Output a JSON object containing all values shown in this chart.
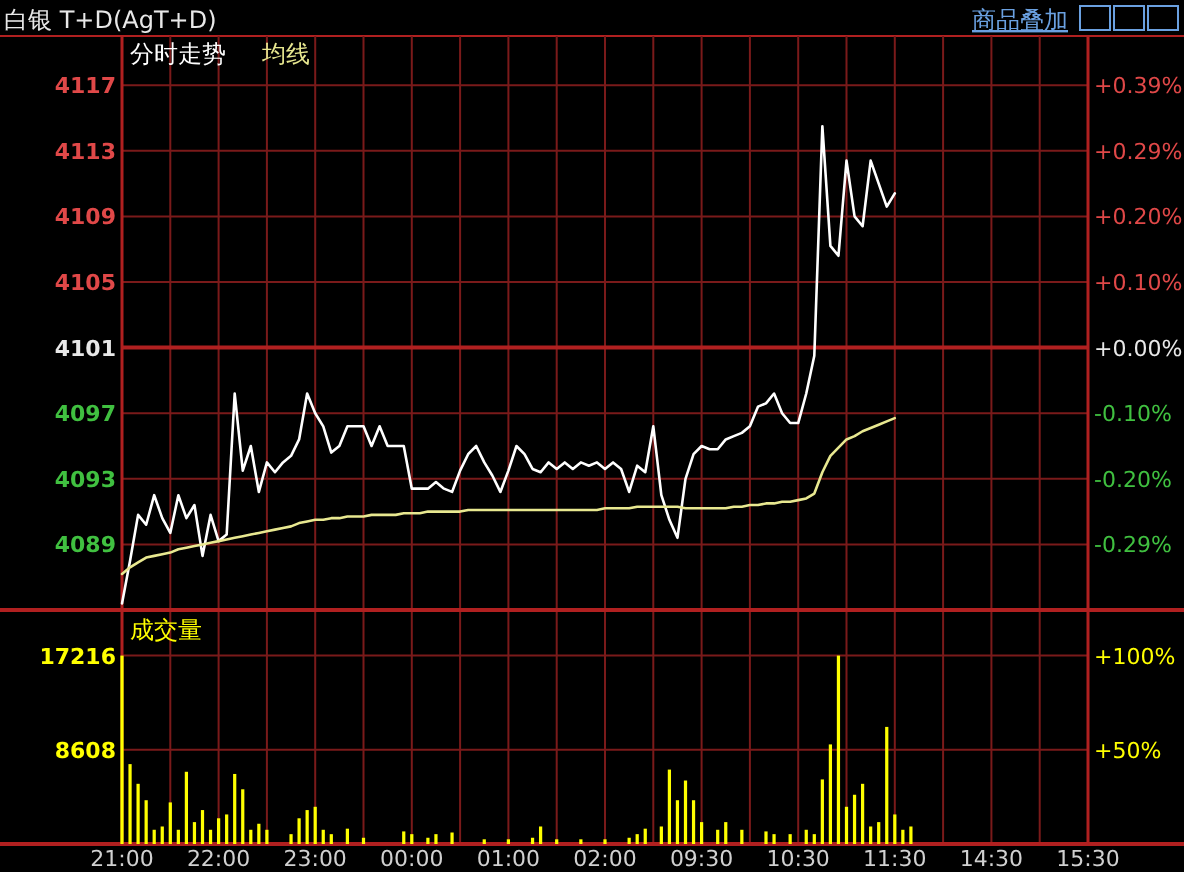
{
  "chart_data": [
    {
      "type": "line",
      "title": "白银 T+D(AgT+D)",
      "annotations": [
        "商品叠加"
      ],
      "legend": "top left",
      "grid": true,
      "tick_labels": "y",
      "categories": [
        null,
        null,
        null,
        null,
        null,
        null,
        null,
        null,
        null,
        null,
        null,
        null,
        null,
        null,
        null,
        null,
        null,
        null,
        null,
        null,
        null,
        null,
        null,
        null,
        null,
        null,
        null,
        null,
        null,
        null,
        null,
        null,
        null,
        null,
        null,
        null,
        null,
        null,
        null,
        null,
        null,
        null,
        null,
        null,
        null,
        null,
        null,
        null,
        null,
        null,
        null,
        null,
        null,
        null,
        null,
        null,
        null,
        null,
        null,
        null,
        null,
        null,
        null,
        null,
        null,
        null,
        null,
        null,
        null,
        null,
        null,
        null,
        null,
        null,
        null,
        null,
        null,
        null,
        null,
        null,
        null,
        null,
        null,
        null,
        null,
        null,
        null,
        null,
        null,
        null,
        null,
        null,
        null,
        null,
        null,
        null,
        null,
        null,
        null,
        null,
        null,
        null,
        null,
        null,
        null,
        null,
        null,
        null,
        null,
        null,
        null,
        null,
        null,
        null,
        null,
        null,
        null,
        null,
        null,
        null,
        null
      ],
      "ylim": [
        4085,
        4120
      ],
      "yticks": [
        4089,
        4093,
        4097,
        4101,
        4105,
        4109,
        4113,
        4117
      ],
      "y2lim": [
        -0.3902,
        0.4633
      ],
      "y2ticks": [
        {
          "value": -0.2926,
          "label": "-0.29%"
        },
        {
          "value": -0.1951,
          "label": "-0.20%"
        },
        {
          "value": -0.0975,
          "label": "-0.10%"
        },
        {
          "value": 0,
          "label": "+0.00%"
        },
        {
          "value": 0.0975,
          "label": "+0.10%"
        },
        {
          "value": 0.1951,
          "label": "+0.20%"
        },
        {
          "value": 0.2926,
          "label": "+0.29%"
        },
        {
          "value": 0.3902,
          "label": "+0.39%"
        }
      ],
      "ref_lines": [
        {
          "axis": "y",
          "value": 4101,
          "color": "#b02020"
        }
      ],
      "series": [
        {
          "name": "分时走势",
          "color": "#ffffff",
          "values": [
            4085.4,
            4088,
            4090.8,
            4090.2,
            4092,
            4090.6,
            4089.7,
            4092,
            4090.6,
            4091.4,
            4088.3,
            4090.8,
            4089.2,
            4089.6,
            4098.2,
            4093.5,
            4095,
            4092.2,
            4094,
            4093.4,
            4094,
            4094.4,
            4095.4,
            4098.2,
            4097,
            4096.2,
            4094.6,
            4095,
            4096.2,
            4096.2,
            4096.2,
            4095,
            4096.2,
            4095,
            4095,
            4095,
            4092.4,
            4092.4,
            4092.4,
            4092.8,
            4092.4,
            4092.2,
            4093.5,
            4094.5,
            4095,
            4094,
            4093.2,
            4092.2,
            4093.5,
            4095,
            4094.5,
            4093.6,
            4093.4,
            4094,
            4093.6,
            4094,
            4093.6,
            4094,
            4093.8,
            4094,
            4093.6,
            4094,
            4093.6,
            4092.2,
            4093.8,
            4093.4,
            4096.2,
            4092,
            4090.5,
            4089.4,
            4093,
            4094.5,
            4095,
            4094.8,
            4094.8,
            4095.4,
            4095.6,
            4095.8,
            4096.2,
            4097.4,
            4097.6,
            4098.2,
            4097,
            4096.4,
            4096.4,
            4098.2,
            4100.5,
            4114.5,
            4107.2,
            4106.6,
            4112.4,
            4109,
            4108.4,
            4112.4,
            4111,
            4109.6,
            4110.4,
            null,
            null,
            null,
            null,
            null,
            null,
            null,
            null,
            null,
            null,
            null,
            null,
            null,
            null,
            null,
            null,
            null,
            null,
            null,
            null,
            null,
            null,
            null,
            null
          ]
        },
        {
          "name": "均线",
          "color": "#e8e890",
          "values": [
            4087.2,
            4087.6,
            4087.9,
            4088.2,
            4088.3,
            4088.4,
            4088.5,
            4088.7,
            4088.8,
            4088.9,
            4089,
            4089.1,
            4089.2,
            4089.3,
            4089.4,
            4089.5,
            4089.6,
            4089.7,
            4089.8,
            4089.9,
            4090,
            4090.1,
            4090.3,
            4090.4,
            4090.5,
            4090.5,
            4090.6,
            4090.6,
            4090.7,
            4090.7,
            4090.7,
            4090.8,
            4090.8,
            4090.8,
            4090.8,
            4090.9,
            4090.9,
            4090.9,
            4091,
            4091,
            4091,
            4091,
            4091,
            4091.1,
            4091.1,
            4091.1,
            4091.1,
            4091.1,
            4091.1,
            4091.1,
            4091.1,
            4091.1,
            4091.1,
            4091.1,
            4091.1,
            4091.1,
            4091.1,
            4091.1,
            4091.1,
            4091.1,
            4091.2,
            4091.2,
            4091.2,
            4091.2,
            4091.3,
            4091.3,
            4091.3,
            4091.3,
            4091.3,
            4091.3,
            4091.2,
            4091.2,
            4091.2,
            4091.2,
            4091.2,
            4091.2,
            4091.3,
            4091.3,
            4091.4,
            4091.4,
            4091.5,
            4091.5,
            4091.6,
            4091.6,
            4091.7,
            4091.8,
            4092.1,
            4093.4,
            4094.4,
            4094.9,
            4095.4,
            4095.6,
            4095.9,
            4096.1,
            4096.3,
            4096.5,
            4096.7,
            null,
            null,
            null,
            null,
            null,
            null,
            null,
            null,
            null,
            null,
            null,
            null,
            null,
            null,
            null,
            null,
            null,
            null,
            null,
            null,
            null,
            null,
            null,
            null
          ]
        }
      ]
    },
    {
      "type": "bar",
      "legend": "top left",
      "grid": true,
      "categories": [
        "21:00",
        null,
        null,
        null,
        null,
        null,
        null,
        null,
        null,
        null,
        null,
        null,
        "22:00",
        null,
        null,
        null,
        null,
        null,
        null,
        null,
        null,
        null,
        null,
        null,
        "23:00",
        null,
        null,
        null,
        null,
        null,
        null,
        null,
        null,
        null,
        null,
        null,
        "00:00",
        null,
        null,
        null,
        null,
        null,
        null,
        null,
        null,
        null,
        null,
        null,
        "01:00",
        null,
        null,
        null,
        null,
        null,
        null,
        null,
        null,
        null,
        null,
        null,
        "02:00",
        null,
        null,
        null,
        null,
        null,
        null,
        null,
        null,
        null,
        null,
        null,
        "09:30",
        null,
        null,
        null,
        null,
        null,
        null,
        null,
        null,
        null,
        null,
        null,
        "10:30",
        null,
        null,
        null,
        null,
        null,
        null,
        null,
        null,
        null,
        null,
        null,
        "11:30",
        null,
        null,
        null,
        null,
        null,
        null,
        null,
        null,
        null,
        null,
        null,
        "14:30",
        null,
        null,
        null,
        null,
        null,
        null,
        null,
        null,
        null,
        null,
        null,
        "15:30"
      ],
      "ylim": [
        0,
        21200
      ],
      "yticks": [
        8608,
        17216
      ],
      "y2lim": [
        0,
        123.1
      ],
      "y2ticks": [
        {
          "value": 50,
          "label": "+50%"
        },
        {
          "value": 100,
          "label": "+100%"
        }
      ],
      "series": [
        {
          "name": "成交量",
          "color": "#ffff00",
          "values": [
            17216,
            7300,
            5500,
            4000,
            1300,
            1600,
            3800,
            1300,
            6600,
            2000,
            3100,
            1300,
            2350,
            2700,
            6400,
            5000,
            1300,
            1850,
            1300,
            null,
            null,
            900,
            2350,
            3100,
            3400,
            1300,
            900,
            null,
            1400,
            null,
            570,
            null,
            null,
            null,
            null,
            1150,
            900,
            null,
            570,
            900,
            null,
            1050,
            null,
            null,
            null,
            430,
            null,
            null,
            430,
            null,
            null,
            570,
            1600,
            null,
            430,
            null,
            null,
            430,
            null,
            null,
            430,
            null,
            null,
            570,
            900,
            1400,
            null,
            1600,
            6800,
            4000,
            5800,
            4000,
            2000,
            null,
            1300,
            2000,
            null,
            1300,
            null,
            null,
            1150,
            900,
            null,
            900,
            null,
            1300,
            900,
            5900,
            9100,
            17216,
            3400,
            4500,
            5500,
            1600,
            2000,
            10700,
            2700,
            1300,
            1600,
            null,
            null,
            null,
            null,
            null,
            null,
            null,
            null,
            null,
            null,
            null,
            null,
            null,
            null,
            null,
            null,
            null,
            null,
            null,
            null,
            null,
            null
          ]
        }
      ]
    }
  ]
}
